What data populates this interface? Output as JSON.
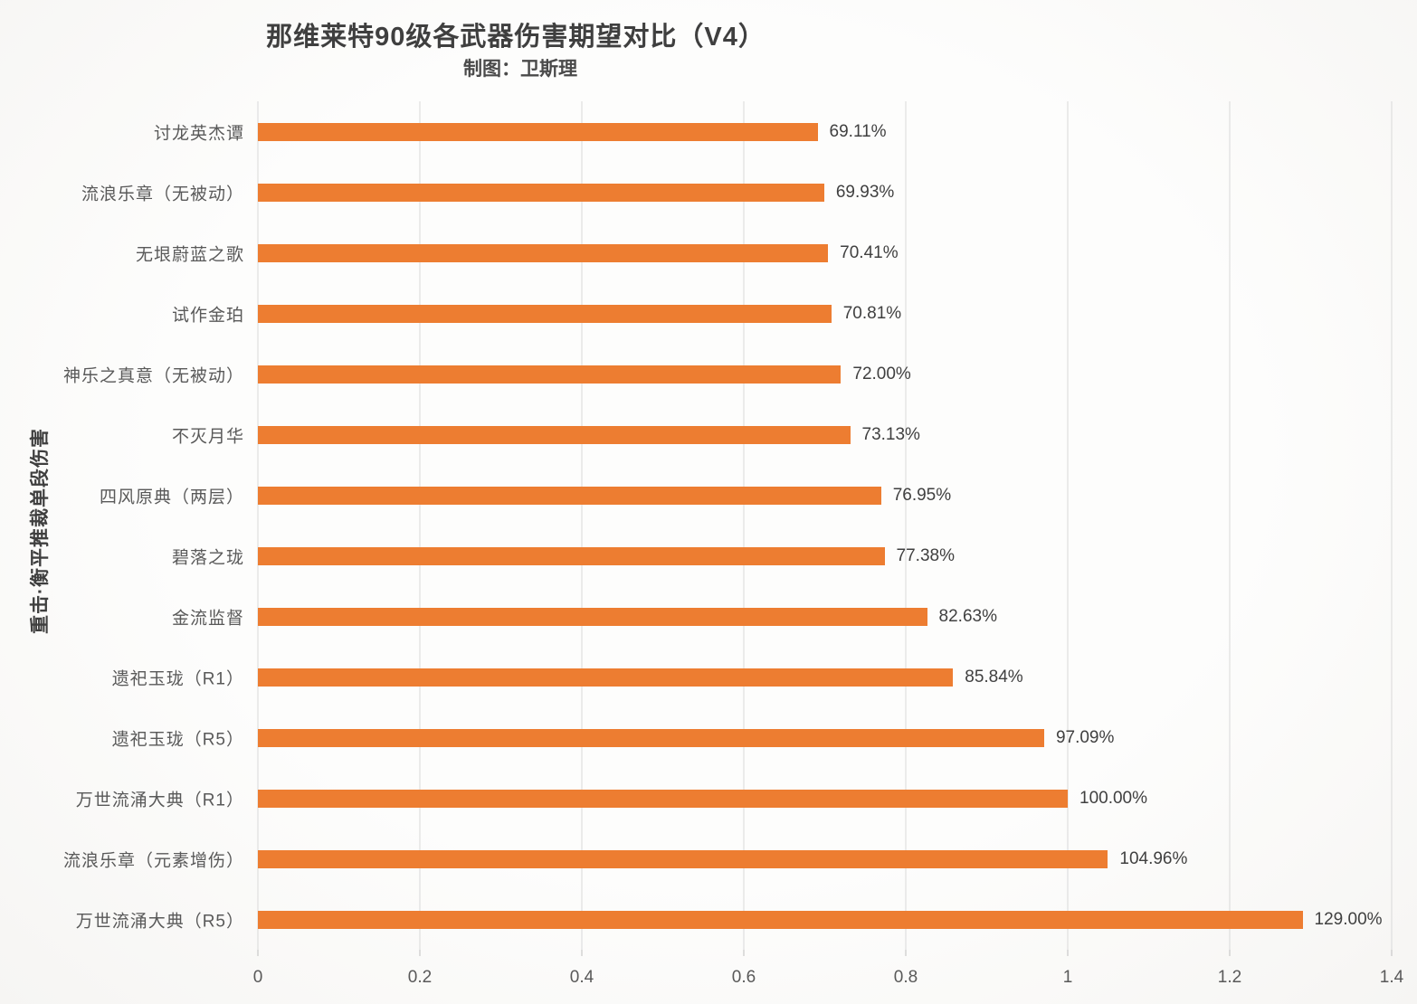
{
  "title": "那维莱特90级各武器伤害期望对比（V4）",
  "subtitle": "制图：卫斯理",
  "y_axis_label": "重击·衡平推裁单段伤害",
  "colors": {
    "bar": "#ed7d31",
    "gridline": "#d9d9d9",
    "title_text": "#3f3f3f",
    "category_text": "#595959",
    "value_text": "#404040"
  },
  "chart_data": {
    "type": "bar",
    "orientation": "horizontal",
    "title": "那维莱特90级各武器伤害期望对比（V4）",
    "subtitle": "制图：卫斯理",
    "ylabel": "重击·衡平推裁单段伤害",
    "xlabel": "",
    "categories": [
      "讨龙英杰谭",
      "流浪乐章（无被动）",
      "无垠蔚蓝之歌",
      "试作金珀",
      "神乐之真意（无被动）",
      "不灭月华",
      "四风原典（两层）",
      "碧落之珑",
      "金流监督",
      "遗祀玉珑（R1）",
      "遗祀玉珑（R5）",
      "万世流涌大典（R1）",
      "流浪乐章（元素增伤）",
      "万世流涌大典（R5）"
    ],
    "values": [
      0.6911,
      0.6993,
      0.7041,
      0.7081,
      0.72,
      0.7313,
      0.7695,
      0.7738,
      0.8263,
      0.8584,
      0.9709,
      1.0,
      1.0496,
      1.29
    ],
    "value_labels": [
      "69.11%",
      "69.93%",
      "70.41%",
      "70.81%",
      "72.00%",
      "73.13%",
      "76.95%",
      "77.38%",
      "82.63%",
      "85.84%",
      "97.09%",
      "100.00%",
      "104.96%",
      "129.00%"
    ],
    "xlim": [
      0,
      1.4
    ],
    "x_ticks": [
      "0",
      "0.2",
      "0.4",
      "0.6",
      "0.8",
      "1",
      "1.2",
      "1.4"
    ],
    "x_tick_values": [
      0,
      0.2,
      0.4,
      0.6,
      0.8,
      1.0,
      1.2,
      1.4
    ],
    "grid": true,
    "legend_position": "none"
  }
}
